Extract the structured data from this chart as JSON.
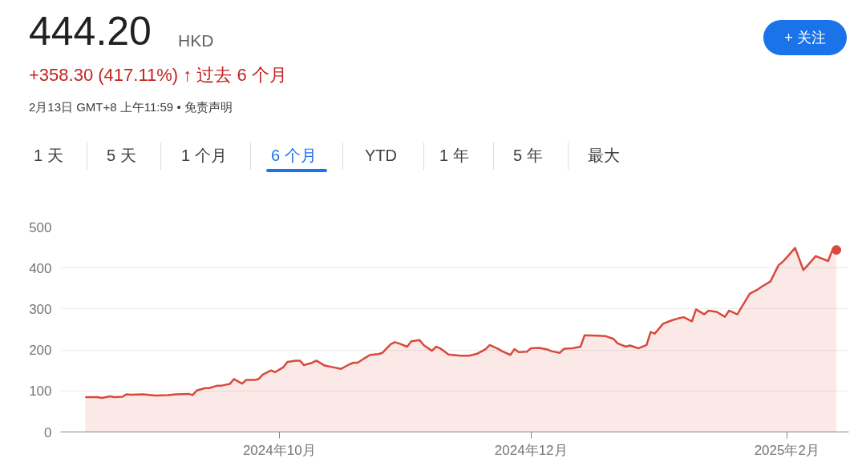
{
  "chart_data": {
    "type": "area",
    "title": "444.20",
    "annotations": [
      "HKD",
      "+358.30 (417.11%) ↑ 过去 6 个月",
      "2月13日 GMT+8 上午11:59 • 免责声明",
      "1 天",
      "5 天",
      "1 个月",
      "6 个月",
      "YTD",
      "1 年",
      "5 年",
      "最大",
      "+ 关注"
    ],
    "series": [
      {
        "color": "#d9493c",
        "x": [
          "2024-08-15",
          "2024-08-18",
          "2024-08-19",
          "2024-08-21",
          "2024-08-22",
          "2024-08-24",
          "2024-08-25",
          "2024-08-26",
          "2024-08-29",
          "2024-09-01",
          "2024-09-04",
          "2024-09-06",
          "2024-09-09",
          "2024-09-10",
          "2024-09-11",
          "2024-09-13",
          "2024-09-14",
          "2024-09-16",
          "2024-09-17",
          "2024-09-19",
          "2024-09-20",
          "2024-09-22",
          "2024-09-23",
          "2024-09-25",
          "2024-09-26",
          "2024-09-27",
          "2024-09-29",
          "2024-09-30",
          "2024-10-02",
          "2024-10-03",
          "2024-10-05",
          "2024-10-06",
          "2024-10-07",
          "2024-10-09",
          "2024-10-10",
          "2024-10-12",
          "2024-10-14",
          "2024-10-16",
          "2024-10-18",
          "2024-10-19",
          "2024-10-20",
          "2024-10-22",
          "2024-10-23",
          "2024-10-25",
          "2024-10-26",
          "2024-10-28",
          "2024-10-29",
          "2024-10-30",
          "2024-11-01",
          "2024-11-02",
          "2024-11-04",
          "2024-11-05",
          "2024-11-07",
          "2024-11-08",
          "2024-11-09",
          "2024-11-11",
          "2024-11-14",
          "2024-11-16",
          "2024-11-18",
          "2024-11-20",
          "2024-11-21",
          "2024-11-23",
          "2024-11-24",
          "2024-11-26",
          "2024-11-27",
          "2024-11-28",
          "2024-11-30",
          "2024-12-01",
          "2024-12-03",
          "2024-12-05",
          "2024-12-06",
          "2024-12-08",
          "2024-12-09",
          "2024-12-11",
          "2024-12-13",
          "2024-12-14",
          "2024-12-17",
          "2024-12-19",
          "2024-12-21",
          "2024-12-22",
          "2024-12-24",
          "2024-12-25",
          "2024-12-27",
          "2024-12-29",
          "2024-12-30",
          "2024-12-31",
          "2025-01-02",
          "2025-01-04",
          "2025-01-06",
          "2025-01-07",
          "2025-01-09",
          "2025-01-10",
          "2025-01-12",
          "2025-01-13",
          "2025-01-15",
          "2025-01-17",
          "2025-01-18",
          "2025-01-20",
          "2025-01-21",
          "2025-01-23",
          "2025-01-25",
          "2025-01-26",
          "2025-01-28",
          "2025-01-30",
          "2025-01-31",
          "2025-02-01",
          "2025-02-03",
          "2025-02-05",
          "2025-02-06",
          "2025-02-08",
          "2025-02-11",
          "2025-02-12",
          "2025-02-13"
        ],
        "values": [
          85,
          85,
          83,
          87,
          85,
          86,
          92,
          91,
          92,
          89,
          90,
          92,
          93,
          90,
          101,
          107,
          107,
          113,
          113,
          117,
          129,
          118,
          127,
          127,
          129,
          140,
          150,
          146,
          158,
          171,
          174,
          174,
          163,
          169,
          174,
          162,
          158,
          154,
          165,
          169,
          169,
          182,
          188,
          190,
          193,
          214,
          219,
          216,
          208,
          221,
          224,
          212,
          198,
          208,
          204,
          189,
          186,
          186,
          191,
          202,
          212,
          203,
          197,
          188,
          202,
          195,
          196,
          204,
          205,
          201,
          197,
          193,
          203,
          204,
          208,
          236,
          235,
          234,
          227,
          216,
          208,
          211,
          204,
          212,
          244,
          240,
          264,
          272,
          278,
          280,
          270,
          299,
          287,
          296,
          293,
          281,
          296,
          287,
          304,
          337,
          348,
          355,
          367,
          407,
          415,
          426,
          449,
          395,
          406,
          429,
          417,
          443,
          444
        ]
      }
    ],
    "xlim": [
      "2024-08-09",
      "2025-02-16"
    ],
    "xticks": [
      {
        "value": "2024-10-01",
        "label": "2024年10月"
      },
      {
        "value": "2024-12-01",
        "label": "2024年12月"
      },
      {
        "value": "2025-02-01",
        "label": "2025年2月"
      }
    ],
    "ylim": [
      0,
      500
    ],
    "yticks": [
      0,
      100,
      200,
      300,
      400,
      500
    ],
    "grid": "y"
  }
}
